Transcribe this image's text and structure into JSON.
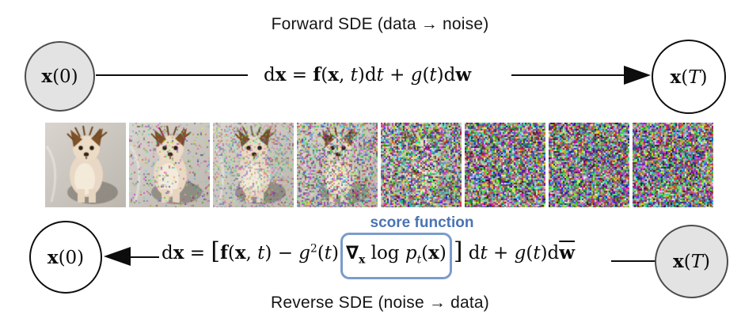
{
  "titles": {
    "forward": "Forward SDE (data → noise)",
    "reverse": "Reverse SDE (noise → data)"
  },
  "score_label": "score function",
  "colors": {
    "accent_blue": "#4a74b4",
    "box_blue": "#7b9ccc",
    "line_black": "#0d0d0d",
    "node_gray_fill": "#e3e3e3",
    "node_gray_border": "#4d4d4d"
  },
  "nodes": {
    "x0": {
      "segments": [
        {
          "t": "x",
          "c": "bf"
        },
        {
          "t": "(0)",
          "c": "rm"
        }
      ]
    },
    "xT": {
      "segments": [
        {
          "t": "x",
          "c": "bf"
        },
        {
          "t": "(",
          "c": "rm"
        },
        {
          "t": "T",
          "c": "it"
        },
        {
          "t": ")",
          "c": "rm"
        }
      ]
    }
  },
  "equations": {
    "forward": {
      "segments": [
        {
          "t": "d",
          "c": "rm"
        },
        {
          "t": "x",
          "c": "bf"
        },
        {
          "t": " = ",
          "c": "rm"
        },
        {
          "t": "f",
          "c": "bf"
        },
        {
          "t": "(",
          "c": "rm"
        },
        {
          "t": "x",
          "c": "bf"
        },
        {
          "t": ", ",
          "c": "rm"
        },
        {
          "t": "t",
          "c": "it"
        },
        {
          "t": ")d",
          "c": "rm"
        },
        {
          "t": "t",
          "c": "it"
        },
        {
          "t": " + ",
          "c": "rm"
        },
        {
          "t": "g",
          "c": "it"
        },
        {
          "t": "(",
          "c": "rm"
        },
        {
          "t": "t",
          "c": "it"
        },
        {
          "t": ")d",
          "c": "rm"
        },
        {
          "t": "w",
          "c": "bf"
        }
      ]
    },
    "reverse_pre": {
      "segments": [
        {
          "t": "d",
          "c": "rm"
        },
        {
          "t": "x",
          "c": "bf"
        },
        {
          "t": " = ",
          "c": "rm"
        },
        {
          "t": "[",
          "c": "rm big"
        },
        {
          "t": "f",
          "c": "bf"
        },
        {
          "t": "(",
          "c": "rm"
        },
        {
          "t": "x",
          "c": "bf"
        },
        {
          "t": ", ",
          "c": "rm"
        },
        {
          "t": "t",
          "c": "it"
        },
        {
          "t": ") − ",
          "c": "rm"
        },
        {
          "t": "g",
          "c": "it"
        },
        {
          "t": "2",
          "c": "rm sup"
        },
        {
          "t": "(",
          "c": "rm"
        },
        {
          "t": "t",
          "c": "it"
        },
        {
          "t": ")",
          "c": "rm"
        }
      ]
    },
    "reverse_box": {
      "segments": [
        {
          "t": "∇",
          "c": "nab bf"
        },
        {
          "t": "x",
          "c": "bf sub"
        },
        {
          "t": " log ",
          "c": "rm"
        },
        {
          "t": "p",
          "c": "it"
        },
        {
          "t": "t",
          "c": "it sub"
        },
        {
          "t": "(",
          "c": "rm"
        },
        {
          "t": "x",
          "c": "bf"
        },
        {
          "t": ")",
          "c": "rm"
        }
      ]
    },
    "reverse_post": {
      "segments": [
        {
          "t": "]",
          "c": "rm big"
        },
        {
          "t": " d",
          "c": "rm"
        },
        {
          "t": "t",
          "c": "it"
        },
        {
          "t": " + ",
          "c": "rm"
        },
        {
          "t": "g",
          "c": "it"
        },
        {
          "t": "(",
          "c": "rm"
        },
        {
          "t": "t",
          "c": "it"
        },
        {
          "t": ")d",
          "c": "rm"
        },
        {
          "t": "w",
          "c": "bf bar"
        }
      ]
    }
  },
  "strip": {
    "description": "puppy photo progressively perturbed into pure colorful pixel noise",
    "items": [
      {
        "name": "noised-image-step-1",
        "noise": 0
      },
      {
        "name": "noised-image-step-2",
        "noise": 0.15
      },
      {
        "name": "noised-image-step-3",
        "noise": 0.38
      },
      {
        "name": "noised-image-step-4",
        "noise": 0.58
      },
      {
        "name": "noised-image-step-5",
        "noise": 0.8
      },
      {
        "name": "noised-image-step-6",
        "noise": 0.93
      },
      {
        "name": "noised-image-step-7",
        "noise": 0.98
      },
      {
        "name": "noised-image-step-8",
        "noise": 1
      }
    ]
  }
}
